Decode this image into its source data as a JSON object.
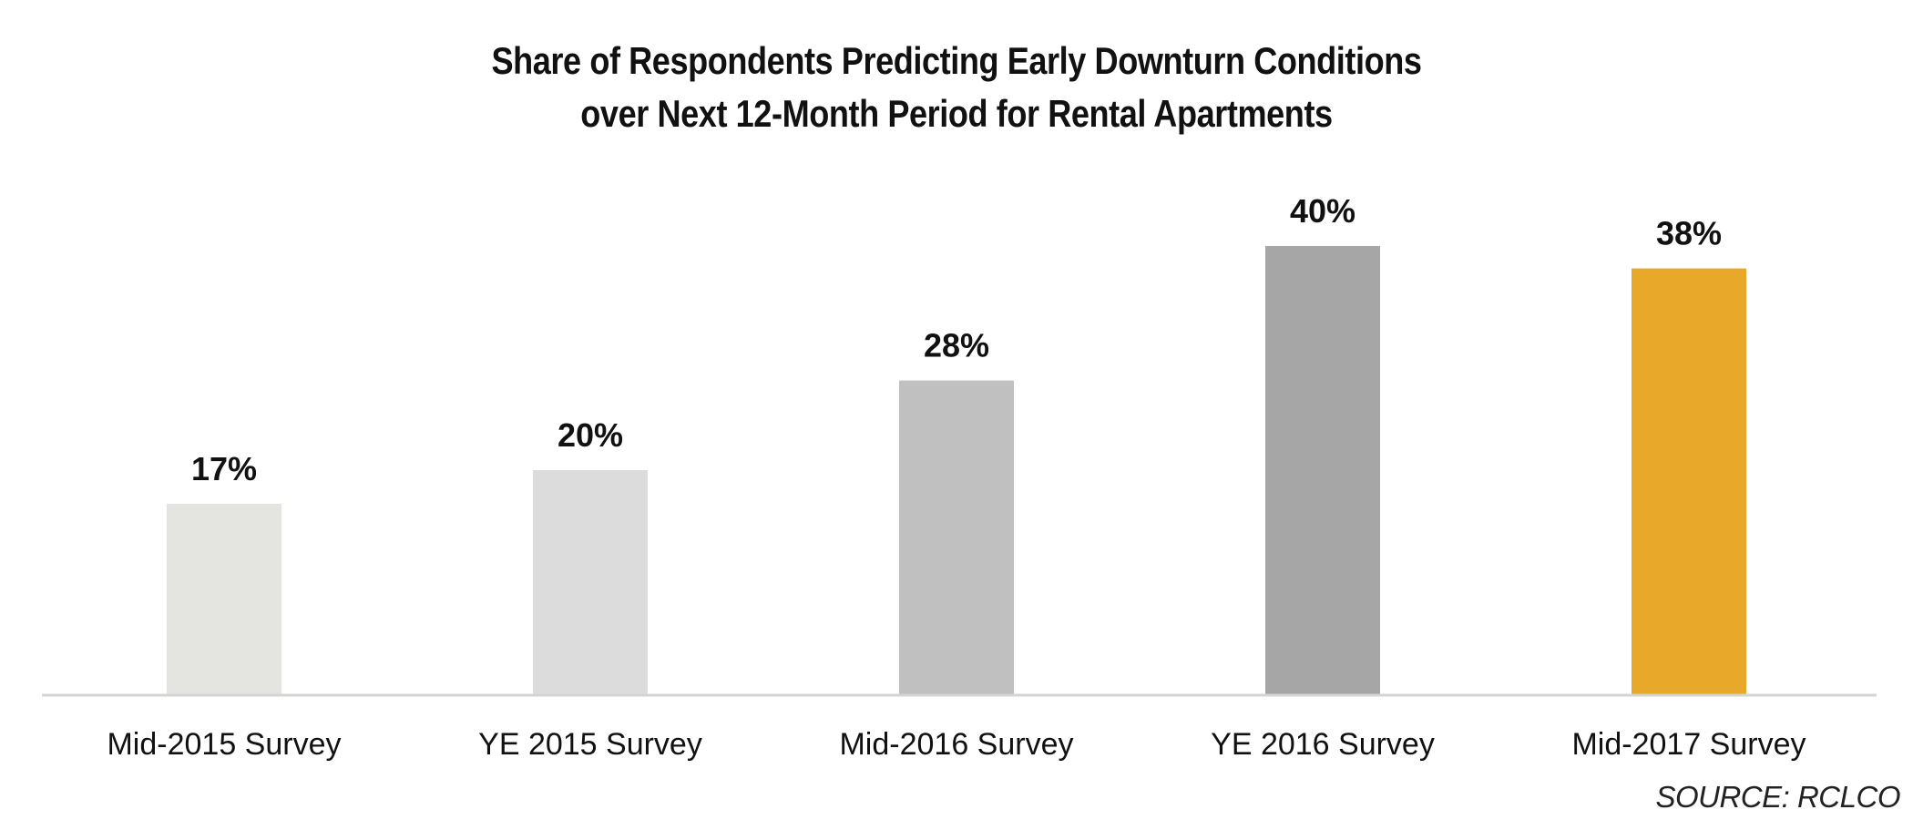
{
  "chart_data": {
    "type": "bar",
    "title_lines": [
      "Share of Respondents Predicting Early Downturn Conditions",
      "over Next 12-Month Period for Rental Apartments"
    ],
    "categories": [
      "Mid-2015 Survey",
      "YE 2015 Survey",
      "Mid-2016 Survey",
      "YE 2016 Survey",
      "Mid-2017 Survey"
    ],
    "values": [
      17,
      20,
      28,
      40,
      38
    ],
    "data_labels": [
      "17%",
      "20%",
      "28%",
      "40%",
      "38%"
    ],
    "bar_colors": [
      "#e4e4e0",
      "#dcdcdc",
      "#c0c0c0",
      "#a6a6a6",
      "#e8a82a"
    ],
    "value_unit": "%",
    "ylim": [
      0,
      40
    ],
    "grid": false,
    "legend": "none",
    "xlabel": "",
    "ylabel": ""
  },
  "source_note": "SOURCE: RCLCO",
  "colors": {
    "axis_line": "#d4d4d4",
    "text": "#111111"
  }
}
